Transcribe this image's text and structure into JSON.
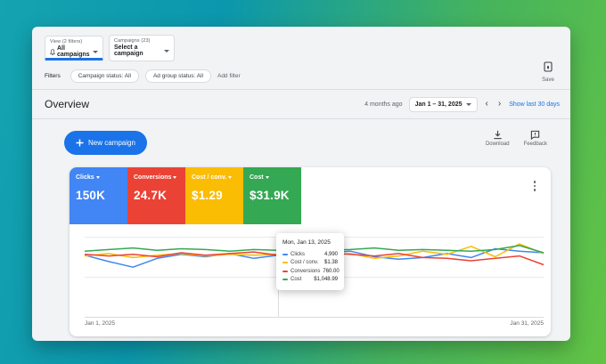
{
  "colors": {
    "accent_blue": "#1a73e8",
    "clicks_blue": "#4285F4",
    "conversions_red": "#EA4335",
    "cost_conv_yellow": "#FBBC04",
    "cost_green": "#34A853"
  },
  "toolbar": {
    "view_label": "View (2 filters)",
    "view_value": "All campaigns",
    "campaign_label": "Campaigns (23)",
    "campaign_value": "Select a campaign",
    "save_label": "Save"
  },
  "filters": {
    "label": "Filters",
    "chips": [
      "Campaign status: All",
      "Ad group status: All"
    ],
    "add_filter_label": "Add filter"
  },
  "overview": {
    "title": "Overview",
    "relative_date": "4 months ago",
    "date_range": "Jan 1 – 31, 2025",
    "show_last_label": "Show last 30 days"
  },
  "actions": {
    "new_campaign_label": "New campaign",
    "download_label": "Download",
    "feedback_label": "Feedback"
  },
  "metric_cards": [
    {
      "label": "Clicks",
      "value": "150K",
      "color": "#4285F4"
    },
    {
      "label": "Conversions",
      "value": "24.7K",
      "color": "#EA4335"
    },
    {
      "label": "Cost / conv.",
      "value": "$1.29",
      "color": "#FBBC04"
    },
    {
      "label": "Cost",
      "value": "$31.9K",
      "color": "#34A853"
    }
  ],
  "tooltip": {
    "date": "Mon, Jan 13, 2025",
    "rows": [
      {
        "label": "Clicks",
        "value": "4,990",
        "color": "#4285F4"
      },
      {
        "label": "Cost / conv.",
        "value": "$1.38",
        "color": "#FBBC04"
      },
      {
        "label": "Conversions",
        "value": "760.00",
        "color": "#EA4335"
      },
      {
        "label": "Cost",
        "value": "$1,048.99",
        "color": "#34A853"
      }
    ]
  },
  "chart_data": {
    "type": "line",
    "title": "",
    "xlabel": "",
    "ylabel": "",
    "x_axis_labels": [
      "Jan 1, 2025",
      "Jan 31, 2025"
    ],
    "grid": "horizontal-3-lines",
    "legend_position": "none",
    "units": "percent_of_plot_height_from_top",
    "hover_index": 8,
    "hover_date": "Mon, Jan 13, 2025",
    "hover_values": {
      "Clicks": "4,990",
      "Cost / conv.": "$1.38",
      "Conversions": "760.00",
      "Cost": "$1,048.99"
    },
    "series": [
      {
        "name": "Clicks",
        "color": "#4285F4",
        "values": [
          23,
          31,
          38,
          27,
          22,
          25,
          21,
          27,
          23,
          26,
          20,
          18,
          25,
          28,
          26,
          21,
          26,
          15,
          18,
          20
        ]
      },
      {
        "name": "Cost / conv.",
        "color": "#FBBC04",
        "values": [
          24,
          21,
          26,
          23,
          21,
          24,
          22,
          23,
          22,
          10,
          24,
          21,
          27,
          24,
          18,
          22,
          12,
          25,
          9,
          21
        ]
      },
      {
        "name": "Conversions",
        "color": "#EA4335",
        "values": [
          22,
          24,
          22,
          25,
          20,
          23,
          21,
          19,
          23,
          27,
          20,
          22,
          24,
          21,
          26,
          27,
          30,
          27,
          24,
          35
        ]
      },
      {
        "name": "Cost",
        "color": "#34A853",
        "values": [
          18,
          16,
          14,
          17,
          15,
          16,
          18,
          16,
          17,
          15,
          17,
          16,
          14,
          17,
          16,
          17,
          18,
          16,
          11,
          20
        ]
      }
    ]
  }
}
